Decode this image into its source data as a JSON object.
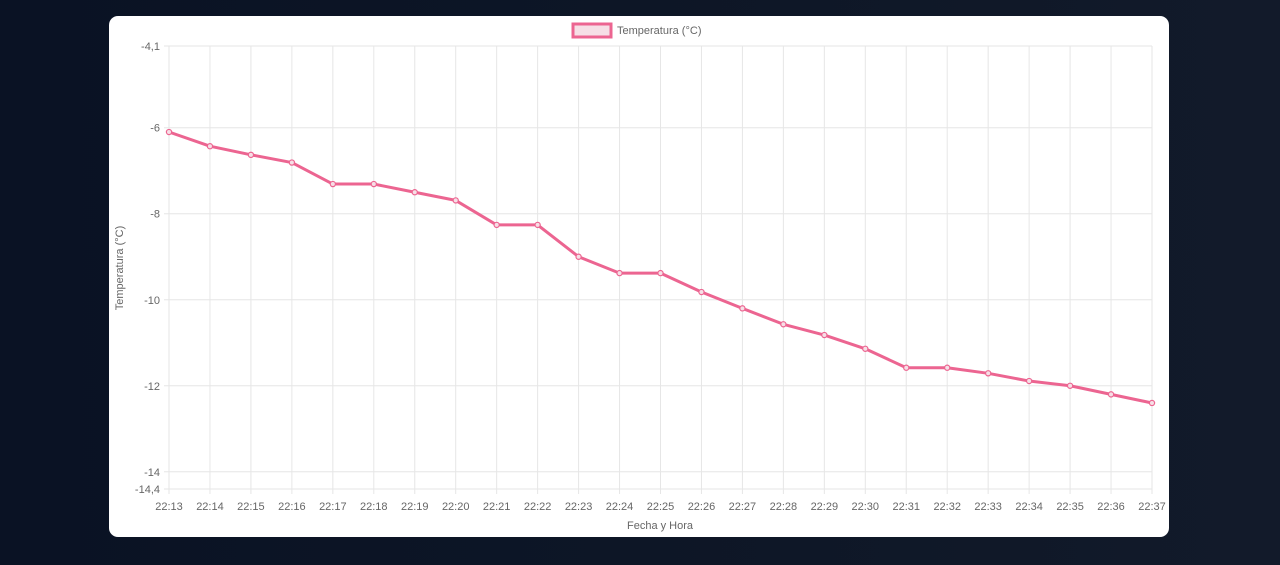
{
  "chart_data": {
    "type": "line",
    "xlabel": "Fecha y Hora",
    "ylabel": "Temperatura (°C)",
    "ylim": [
      -14.4,
      -4.1
    ],
    "y_ticks": [
      "-4,1",
      "-6",
      "-8",
      "-10",
      "-12",
      "-14",
      "-14,4"
    ],
    "y_tick_values": [
      -4.1,
      -6,
      -8,
      -10,
      -12,
      -14,
      -14.4
    ],
    "grid": true,
    "legend_position": "top",
    "categories": [
      "22:13",
      "22:14",
      "22:15",
      "22:16",
      "22:17",
      "22:18",
      "22:19",
      "22:20",
      "22:21",
      "22:22",
      "22:23",
      "22:24",
      "22:25",
      "22:26",
      "22:27",
      "22:28",
      "22:29",
      "22:30",
      "22:31",
      "22:32",
      "22:33",
      "22:34",
      "22:35",
      "22:36",
      "22:37"
    ],
    "series": [
      {
        "name": "Temperatura (°C)",
        "color": "#ec6591",
        "values": [
          -6.1,
          -6.43,
          -6.63,
          -6.81,
          -7.31,
          -7.31,
          -7.5,
          -7.69,
          -8.26,
          -8.26,
          -9.0,
          -9.38,
          -9.38,
          -9.82,
          -10.2,
          -10.57,
          -10.82,
          -11.14,
          -11.58,
          -11.58,
          -11.71,
          -11.89,
          -12.0,
          -12.2,
          -12.4
        ]
      }
    ]
  }
}
